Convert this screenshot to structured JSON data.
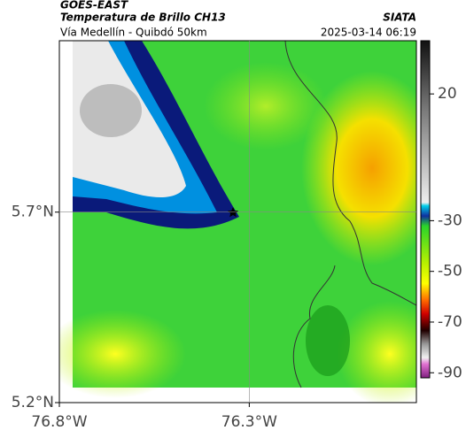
{
  "header": {
    "title": "GOES-EAST",
    "subtitle": "Temperatura de Brillo CH13",
    "route": "Vía Medellín - Quibdó 50km",
    "source": "SIATA",
    "timestamp": "2025-03-14 06:19"
  },
  "map": {
    "xlim": [
      -76.8,
      -75.86
    ],
    "ylim": [
      5.2,
      6.15
    ],
    "xticks": [
      {
        "value": -76.8,
        "label": "76.8°W"
      },
      {
        "value": -76.3,
        "label": "76.3°W"
      }
    ],
    "yticks": [
      {
        "value": 5.7,
        "label": "5.7°N"
      },
      {
        "value": 5.2,
        "label": "5.2°N"
      }
    ],
    "grid": true
  },
  "colorbar": {
    "range": [
      41,
      -92
    ],
    "ticks": [
      20,
      -30,
      -50,
      -70,
      -90
    ]
  }
}
